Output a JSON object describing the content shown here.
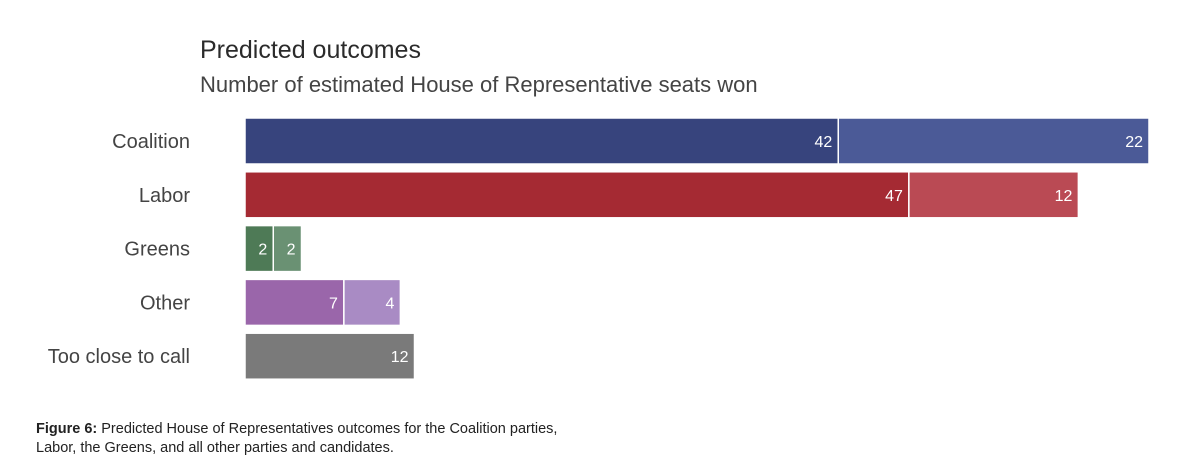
{
  "chart_data": {
    "type": "bar",
    "orientation": "horizontal",
    "stacked": true,
    "title": "Predicted outcomes",
    "subtitle": "Number of estimated House of Representative seats won",
    "categories": [
      "Coalition",
      "Labor",
      "Greens",
      "Other",
      "Too close to call"
    ],
    "segments": [
      [
        {
          "value": 42,
          "color": "#37447d"
        },
        {
          "value": 22,
          "color": "#4b5a97"
        }
      ],
      [
        {
          "value": 47,
          "color": "#a52a33"
        },
        {
          "value": 12,
          "color": "#ba4a54"
        }
      ],
      [
        {
          "value": 2,
          "color": "#4e7a56"
        },
        {
          "value": 2,
          "color": "#6a9173"
        }
      ],
      [
        {
          "value": 7,
          "color": "#9a66aa"
        },
        {
          "value": 4,
          "color": "#a98bc4"
        }
      ],
      [
        {
          "value": 12,
          "color": "#7a7a7a"
        }
      ]
    ],
    "xlim": [
      0,
      64
    ],
    "xlabel": "",
    "ylabel": "",
    "grid": false,
    "legend": "none"
  },
  "caption": {
    "label": "Figure 6:",
    "line1": "Predicted House of Representatives outcomes for the Coalition parties,",
    "line2": "Labor, the Greens, and all other parties and candidates."
  }
}
